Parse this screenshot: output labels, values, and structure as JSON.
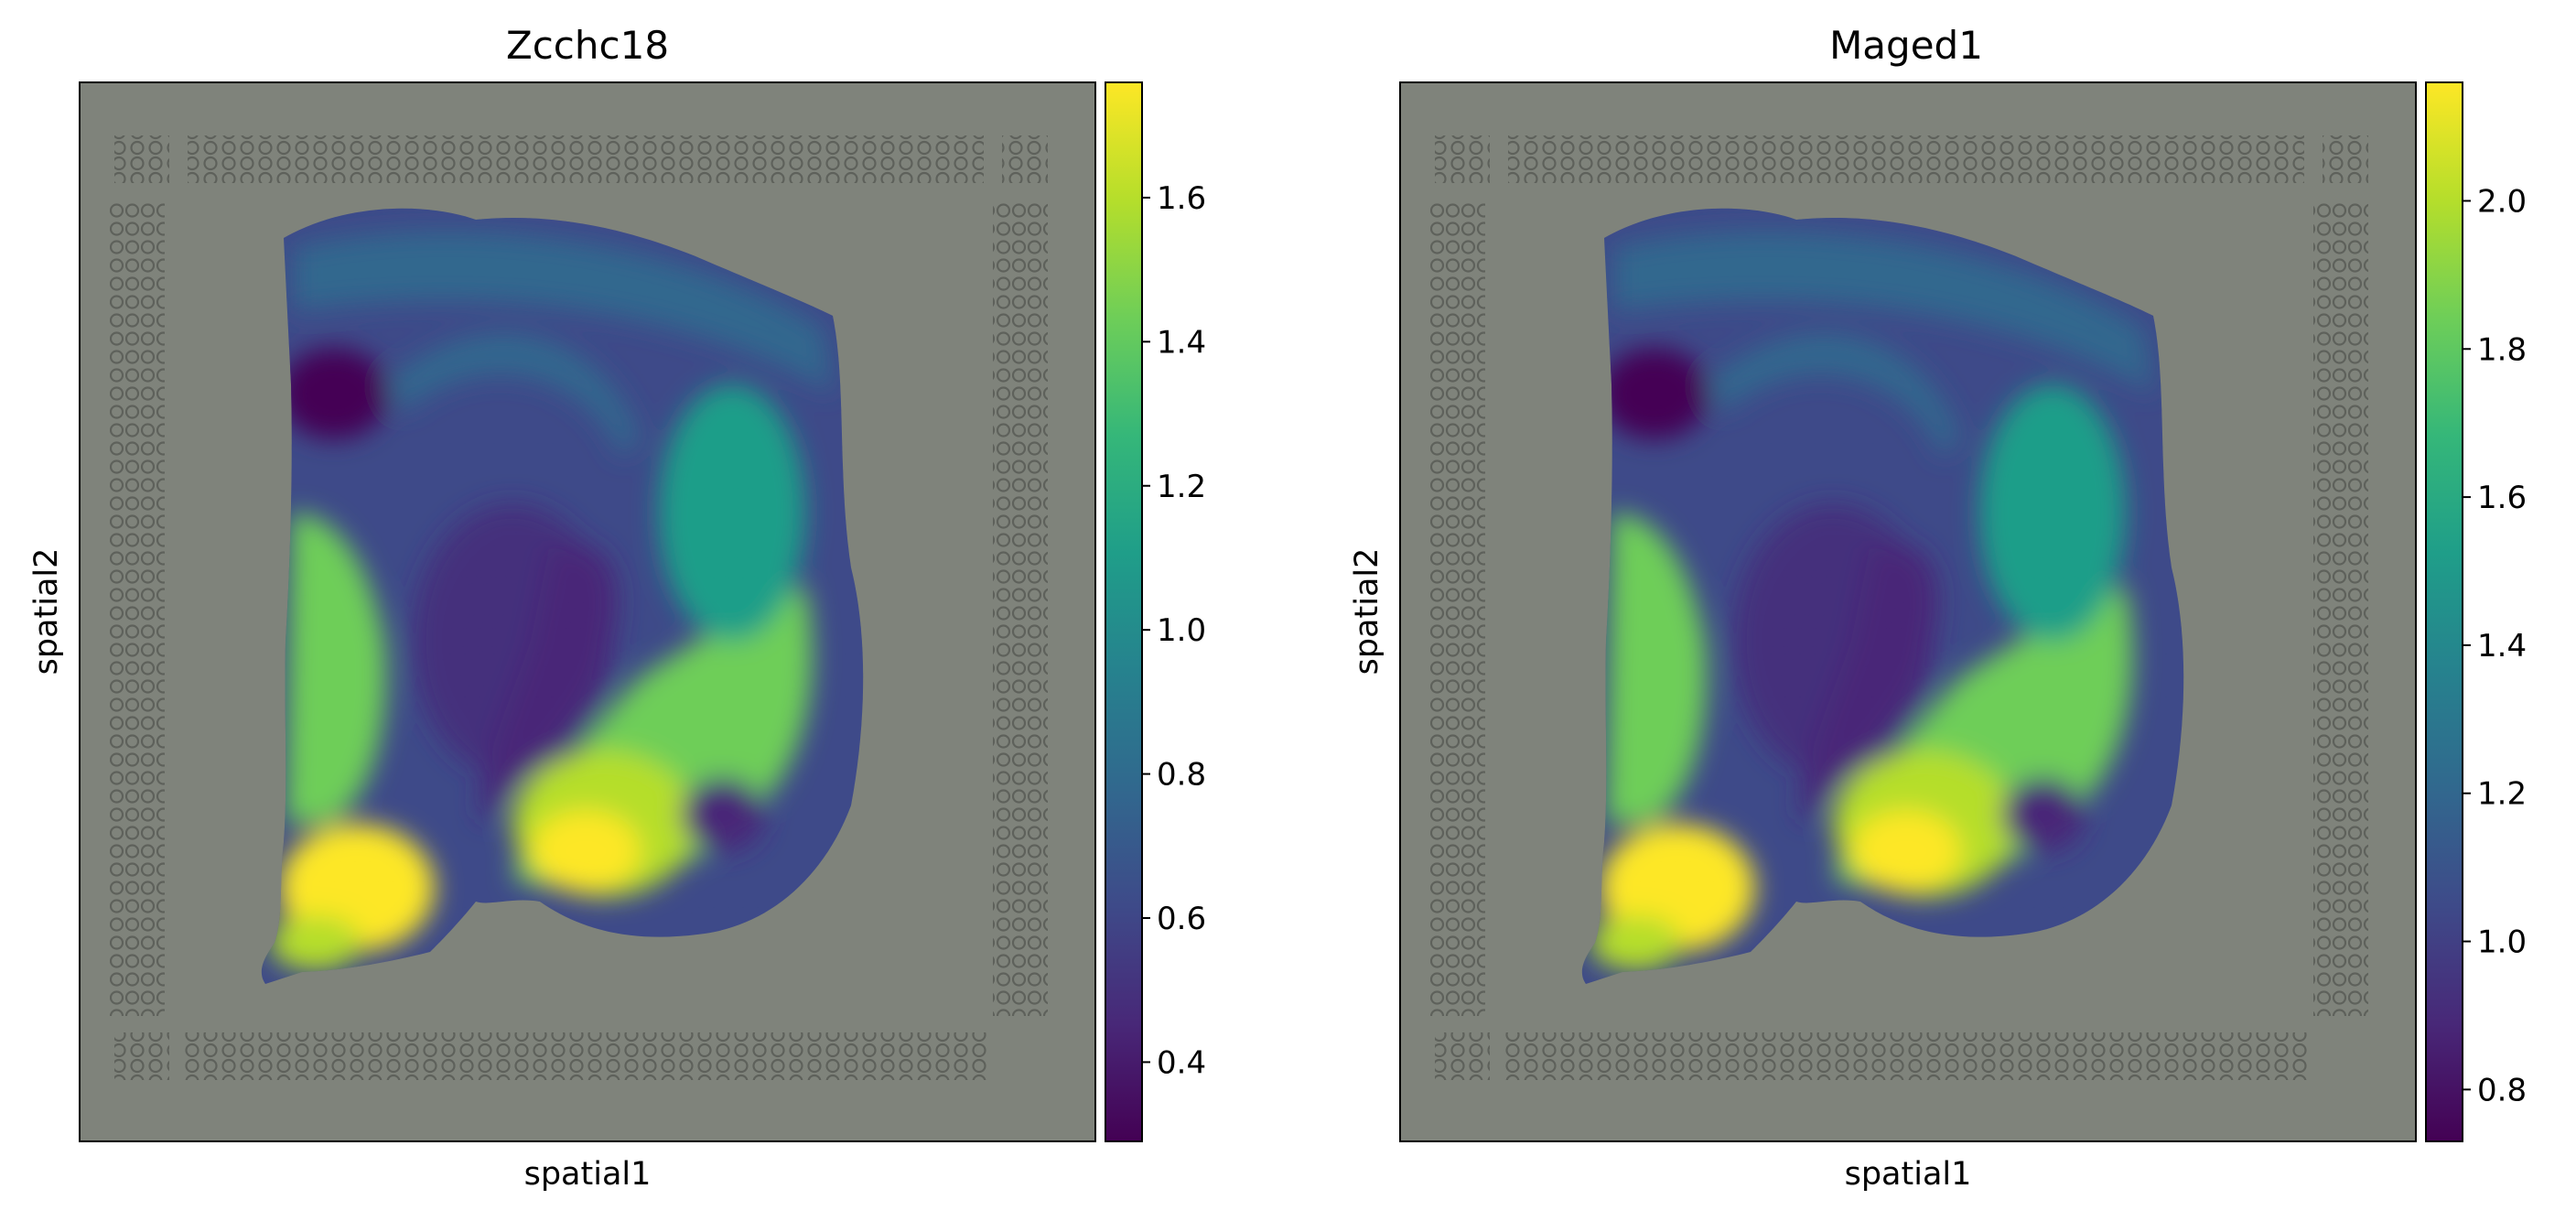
{
  "colormap": [
    "#440154",
    "#482878",
    "#3e4a89",
    "#31688e",
    "#26828e",
    "#1f9e89",
    "#35b779",
    "#6ece58",
    "#b5de2b",
    "#fde725"
  ],
  "background_color": "#7f837b",
  "fiducial_color": "#5e615b",
  "chart_data": [
    {
      "type": "heatmap",
      "title": "Zcchc18",
      "xlabel": "spatial1",
      "ylabel": "spatial2",
      "colorbar": {
        "vmin": 0.29,
        "vmax": 1.76,
        "ticks": [
          0.4,
          0.6,
          0.8,
          1.0,
          1.2,
          1.4,
          1.6
        ],
        "tick_labels": [
          "0.4",
          "0.6",
          "0.8",
          "1.0",
          "1.2",
          "1.4",
          "1.6"
        ],
        "orientation": "vertical",
        "placement": "right"
      },
      "xticks": [],
      "yticks": []
    },
    {
      "type": "heatmap",
      "title": "Maged1",
      "xlabel": "spatial1",
      "ylabel": "spatial2",
      "colorbar": {
        "vmin": 0.73,
        "vmax": 2.16,
        "ticks": [
          0.8,
          1.0,
          1.2,
          1.4,
          1.6,
          1.8,
          2.0
        ],
        "tick_labels": [
          "0.8",
          "1.0",
          "1.2",
          "1.4",
          "1.6",
          "1.8",
          "2.0"
        ],
        "orientation": "vertical",
        "placement": "right"
      },
      "xticks": [],
      "yticks": []
    }
  ]
}
